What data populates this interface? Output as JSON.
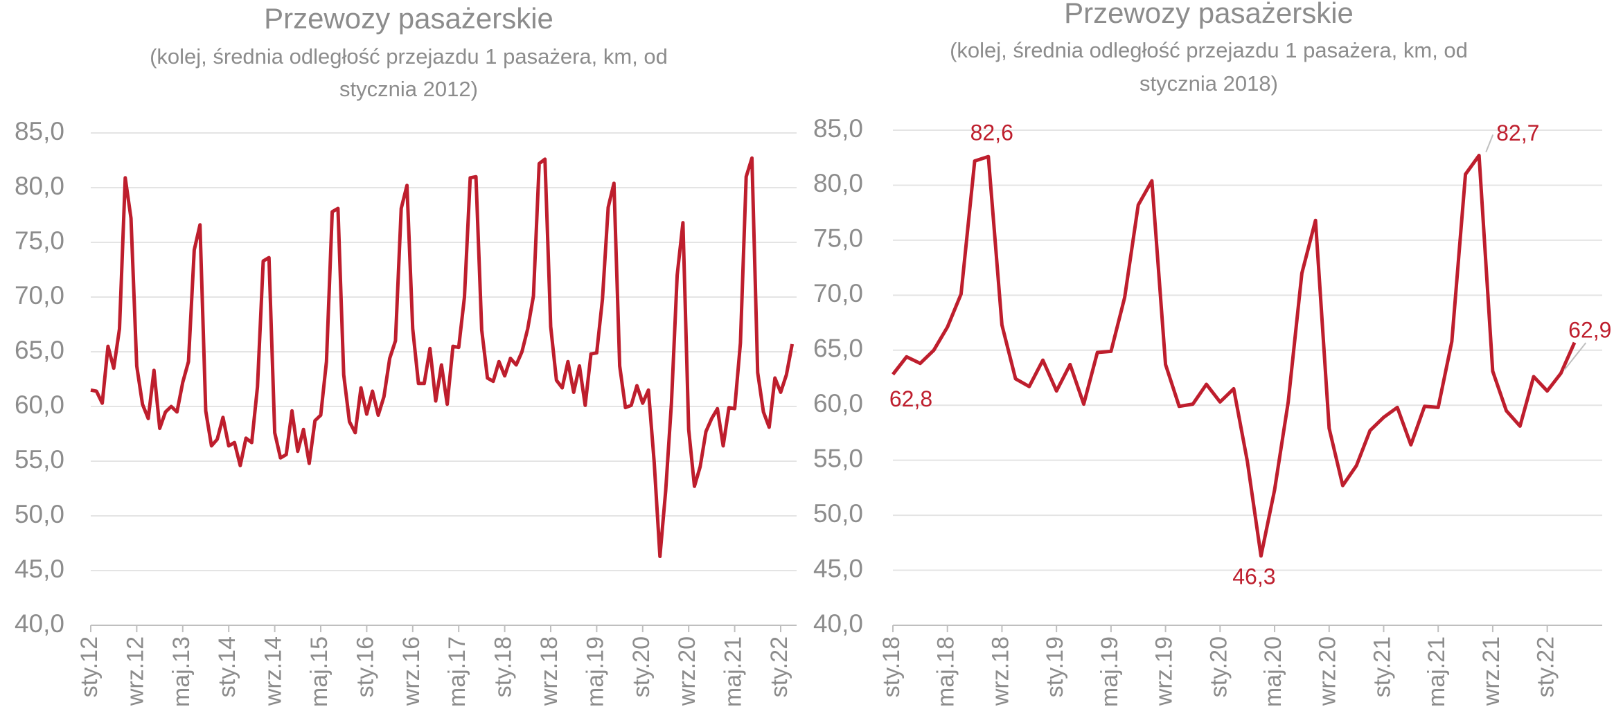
{
  "chart_data": [
    {
      "type": "line",
      "title": "Przewozy pasażerskie",
      "subtitle": [
        "(kolej, średnia odległość przejazdu 1 pasażera, km, od",
        "stycznia 2012)"
      ],
      "categories": [
        "sty.12",
        null,
        null,
        null,
        null,
        null,
        null,
        null,
        "wrz.12",
        null,
        null,
        null,
        null,
        null,
        null,
        null,
        "maj.13",
        null,
        null,
        null,
        null,
        null,
        null,
        null,
        "sty.14",
        null,
        null,
        null,
        null,
        null,
        null,
        null,
        "wrz.14",
        null,
        null,
        null,
        null,
        null,
        null,
        null,
        "maj.15",
        null,
        null,
        null,
        null,
        null,
        null,
        null,
        "sty.16",
        null,
        null,
        null,
        null,
        null,
        null,
        null,
        "wrz.16",
        null,
        null,
        null,
        null,
        null,
        null,
        null,
        "maj.17",
        null,
        null,
        null,
        null,
        null,
        null,
        null,
        "sty.18",
        null,
        null,
        null,
        null,
        null,
        null,
        null,
        "wrz.18",
        null,
        null,
        null,
        null,
        null,
        null,
        null,
        "maj.19",
        null,
        null,
        null,
        null,
        null,
        null,
        null,
        "sty.20",
        null,
        null,
        null,
        null,
        null,
        null,
        null,
        "wrz.20",
        null,
        null,
        null,
        null,
        null,
        null,
        null,
        "maj.21",
        null,
        null,
        null,
        null,
        null,
        null,
        null,
        "sty.22",
        null,
        null
      ],
      "series": [
        {
          "color": "#be1e2d",
          "values": [
            61.5,
            61.4,
            60.3,
            65.5,
            63.5,
            67.1,
            80.9,
            77.2,
            63.7,
            60.2,
            58.9,
            63.3,
            58.0,
            59.5,
            60.0,
            59.5,
            62.2,
            64.1,
            74.3,
            76.6,
            59.6,
            56.4,
            57.0,
            59.0,
            56.4,
            56.7,
            54.6,
            57.1,
            56.7,
            61.8,
            73.3,
            73.6,
            57.6,
            55.3,
            55.6,
            59.6,
            55.9,
            57.9,
            54.8,
            58.7,
            59.2,
            64.1,
            77.8,
            78.1,
            62.9,
            58.6,
            57.6,
            61.7,
            59.3,
            61.4,
            59.2,
            60.9,
            64.4,
            66.0,
            78.1,
            80.2,
            67.1,
            62.1,
            62.1,
            65.3,
            60.5,
            63.8,
            60.2,
            65.5,
            65.4,
            70.0,
            80.9,
            81.0,
            67.0,
            62.6,
            62.3,
            64.1,
            62.8,
            64.4,
            63.8,
            65.0,
            67.1,
            70.1,
            82.2,
            82.6,
            67.3,
            62.4,
            61.7,
            64.1,
            61.3,
            63.7,
            60.1,
            64.8,
            64.9,
            69.8,
            78.2,
            80.4,
            63.7,
            59.9,
            60.1,
            61.9,
            60.3,
            61.5,
            54.9,
            46.3,
            52.3,
            60.3,
            72.0,
            76.8,
            57.9,
            52.7,
            54.5,
            57.7,
            58.9,
            59.8,
            56.4,
            59.9,
            59.8,
            65.8,
            81.0,
            82.7,
            63.1,
            59.5,
            58.1,
            62.6,
            61.3,
            62.9,
            65.7
          ]
        }
      ],
      "ylim": [
        40,
        85
      ],
      "yticks": [
        {
          "value": 40,
          "label": "40,0"
        },
        {
          "value": 45,
          "label": "45,0"
        },
        {
          "value": 50,
          "label": "50,0"
        },
        {
          "value": 55,
          "label": "55,0"
        },
        {
          "value": 60,
          "label": "60,0"
        },
        {
          "value": 65,
          "label": "65,0"
        },
        {
          "value": 70,
          "label": "70,0"
        },
        {
          "value": 75,
          "label": "75,0"
        },
        {
          "value": 80,
          "label": "80,0"
        },
        {
          "value": 85,
          "label": "85,0"
        }
      ],
      "grid": true
    },
    {
      "type": "line",
      "title": "Przewozy pasażerskie",
      "subtitle": [
        "(kolej, średnia odległość przejazdu 1 pasażera, km, od",
        "stycznia 2018)"
      ],
      "categories": [
        "sty.18",
        null,
        null,
        null,
        "maj.18",
        null,
        null,
        null,
        "wrz.18",
        null,
        null,
        null,
        "sty.19",
        null,
        null,
        null,
        "maj.19",
        null,
        null,
        null,
        "wrz.19",
        null,
        null,
        null,
        "sty.20",
        null,
        null,
        null,
        "maj.20",
        null,
        null,
        null,
        "wrz.20",
        null,
        null,
        null,
        "sty.21",
        null,
        null,
        null,
        "maj.21",
        null,
        null,
        null,
        "wrz.21",
        null,
        null,
        null,
        "sty.22",
        null,
        null
      ],
      "series": [
        {
          "color": "#be1e2d",
          "values": [
            62.8,
            64.4,
            63.8,
            65.0,
            67.1,
            70.1,
            82.2,
            82.6,
            67.3,
            62.4,
            61.7,
            64.1,
            61.3,
            63.7,
            60.1,
            64.8,
            64.9,
            69.8,
            78.2,
            80.4,
            63.7,
            59.9,
            60.1,
            61.9,
            60.3,
            61.5,
            54.9,
            46.3,
            52.3,
            60.3,
            72.0,
            76.8,
            57.9,
            52.7,
            54.5,
            57.7,
            58.9,
            59.8,
            56.4,
            59.9,
            59.8,
            65.8,
            81.0,
            82.7,
            63.1,
            59.5,
            58.1,
            62.6,
            61.3,
            62.9,
            65.7
          ],
          "value_labels": [
            "62,8",
            null,
            null,
            null,
            null,
            null,
            null,
            "82,6",
            null,
            null,
            null,
            null,
            null,
            null,
            null,
            null,
            null,
            null,
            null,
            null,
            null,
            null,
            null,
            null,
            null,
            null,
            null,
            "46,3",
            null,
            null,
            null,
            null,
            null,
            null,
            null,
            null,
            null,
            null,
            null,
            null,
            null,
            null,
            null,
            "82,7",
            null,
            null,
            null,
            null,
            null,
            "62,9",
            null
          ]
        }
      ],
      "ylim": [
        40,
        85
      ],
      "yticks": [
        {
          "value": 40,
          "label": "40,0"
        },
        {
          "value": 45,
          "label": "45,0"
        },
        {
          "value": 50,
          "label": "50,0"
        },
        {
          "value": 55,
          "label": "55,0"
        },
        {
          "value": 60,
          "label": "60,0"
        },
        {
          "value": 65,
          "label": "65,0"
        },
        {
          "value": 70,
          "label": "70,0"
        },
        {
          "value": 75,
          "label": "75,0"
        },
        {
          "value": 80,
          "label": "80,0"
        },
        {
          "value": 85,
          "label": "85,0"
        }
      ],
      "grid": true
    }
  ]
}
